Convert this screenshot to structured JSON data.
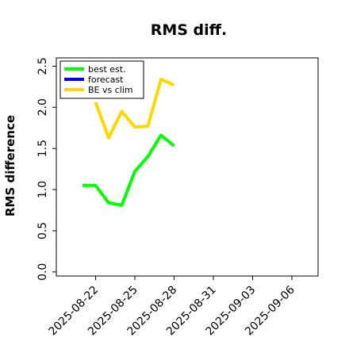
{
  "chart_data": {
    "type": "line",
    "title": "RMS diff.",
    "xlabel": "",
    "ylabel": "RMS difference",
    "ylim": [
      -0.05,
      2.6
    ],
    "yticks": [
      "0.0",
      "0.5",
      "1.0",
      "1.5",
      "2.0",
      "2.5"
    ],
    "xticks": [
      "2025-08-22",
      "2025-08-25",
      "2025-08-28",
      "2025-08-31",
      "2025-09-03",
      "2025-09-06"
    ],
    "highlighted_xtick": "2025-08-28",
    "highlight_color": "#2ca02c",
    "xlim": [
      "2025-08-19",
      "2025-09-08"
    ],
    "grid": false,
    "legend_position": "top-left",
    "series": [
      {
        "name": "best est.",
        "color": "#00ff00",
        "x": [
          "2025-08-21",
          "2025-08-22",
          "2025-08-23",
          "2025-08-24",
          "2025-08-25",
          "2025-08-26",
          "2025-08-27",
          "2025-08-28"
        ],
        "values": [
          1.05,
          1.05,
          0.84,
          0.81,
          1.22,
          1.4,
          1.66,
          1.53
        ]
      },
      {
        "name": "forecast",
        "color": "#0000ff",
        "x": [],
        "values": []
      },
      {
        "name": "BE vs clim",
        "color": "#ffd700",
        "x": [
          "2025-08-22",
          "2025-08-23",
          "2025-08-24",
          "2025-08-25",
          "2025-08-26",
          "2025-08-27",
          "2025-08-28"
        ],
        "values": [
          2.06,
          1.63,
          1.95,
          1.76,
          1.77,
          2.34,
          2.27
        ]
      }
    ]
  }
}
